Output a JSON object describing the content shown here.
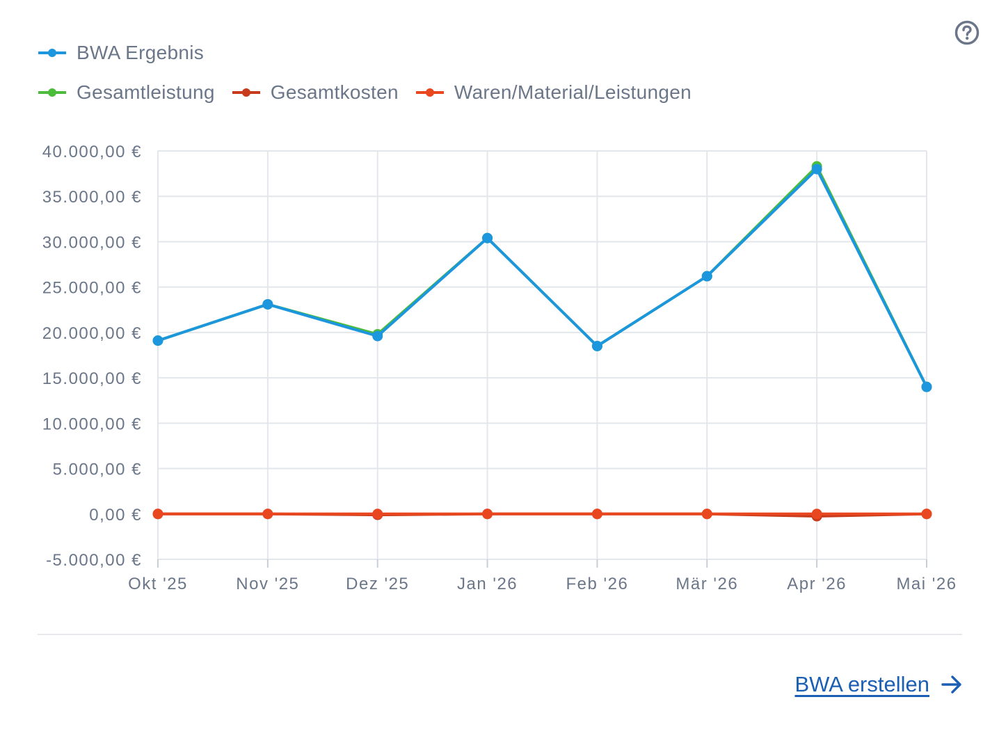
{
  "legend": {
    "row1": [
      {
        "name": "BWA Ergebnis",
        "color": "#1c96dc"
      }
    ],
    "row2": [
      {
        "name": "Gesamtleistung",
        "color": "#4cbd3a"
      },
      {
        "name": "Gesamtkosten",
        "color": "#c73a1c"
      },
      {
        "name": "Waren/Material/Leistungen",
        "color": "#e8471f"
      }
    ]
  },
  "help_icon": "question-circle-icon",
  "cta": {
    "label": "BWA erstellen",
    "icon": "arrow-right-icon",
    "color": "#1a5fb4"
  },
  "chart_data": {
    "type": "line",
    "categories": [
      "Okt '25",
      "Nov '25",
      "Dez '25",
      "Jan '26",
      "Feb '26",
      "Mär '26",
      "Apr '26",
      "Mai '26"
    ],
    "ylim": [
      -5000,
      40000
    ],
    "yticks": [
      40000,
      35000,
      30000,
      25000,
      20000,
      15000,
      10000,
      5000,
      0,
      -5000
    ],
    "ytick_labels": [
      "40.000,00 €",
      "35.000,00 €",
      "30.000,00 €",
      "25.000,00 €",
      "20.000,00 €",
      "15.000,00 €",
      "10.000,00 €",
      "5.000,00 €",
      "0,00 €",
      "-5.000,00 €"
    ],
    "grid": true,
    "legend_position": "top-left",
    "series": [
      {
        "name": "Gesamtleistung",
        "color": "#4cbd3a",
        "values": [
          19100,
          23100,
          19800,
          30400,
          18500,
          26200,
          38300,
          14000
        ]
      },
      {
        "name": "Gesamtkosten",
        "color": "#c73a1c",
        "values": [
          0,
          0,
          -100,
          0,
          0,
          0,
          -250,
          0
        ]
      },
      {
        "name": "Waren/Material/Leistungen",
        "color": "#e8471f",
        "values": [
          0,
          0,
          0,
          0,
          0,
          0,
          0,
          0
        ]
      },
      {
        "name": "BWA Ergebnis",
        "color": "#1c96dc",
        "values": [
          19100,
          23100,
          19600,
          30400,
          18500,
          26200,
          38000,
          14000
        ]
      }
    ]
  }
}
